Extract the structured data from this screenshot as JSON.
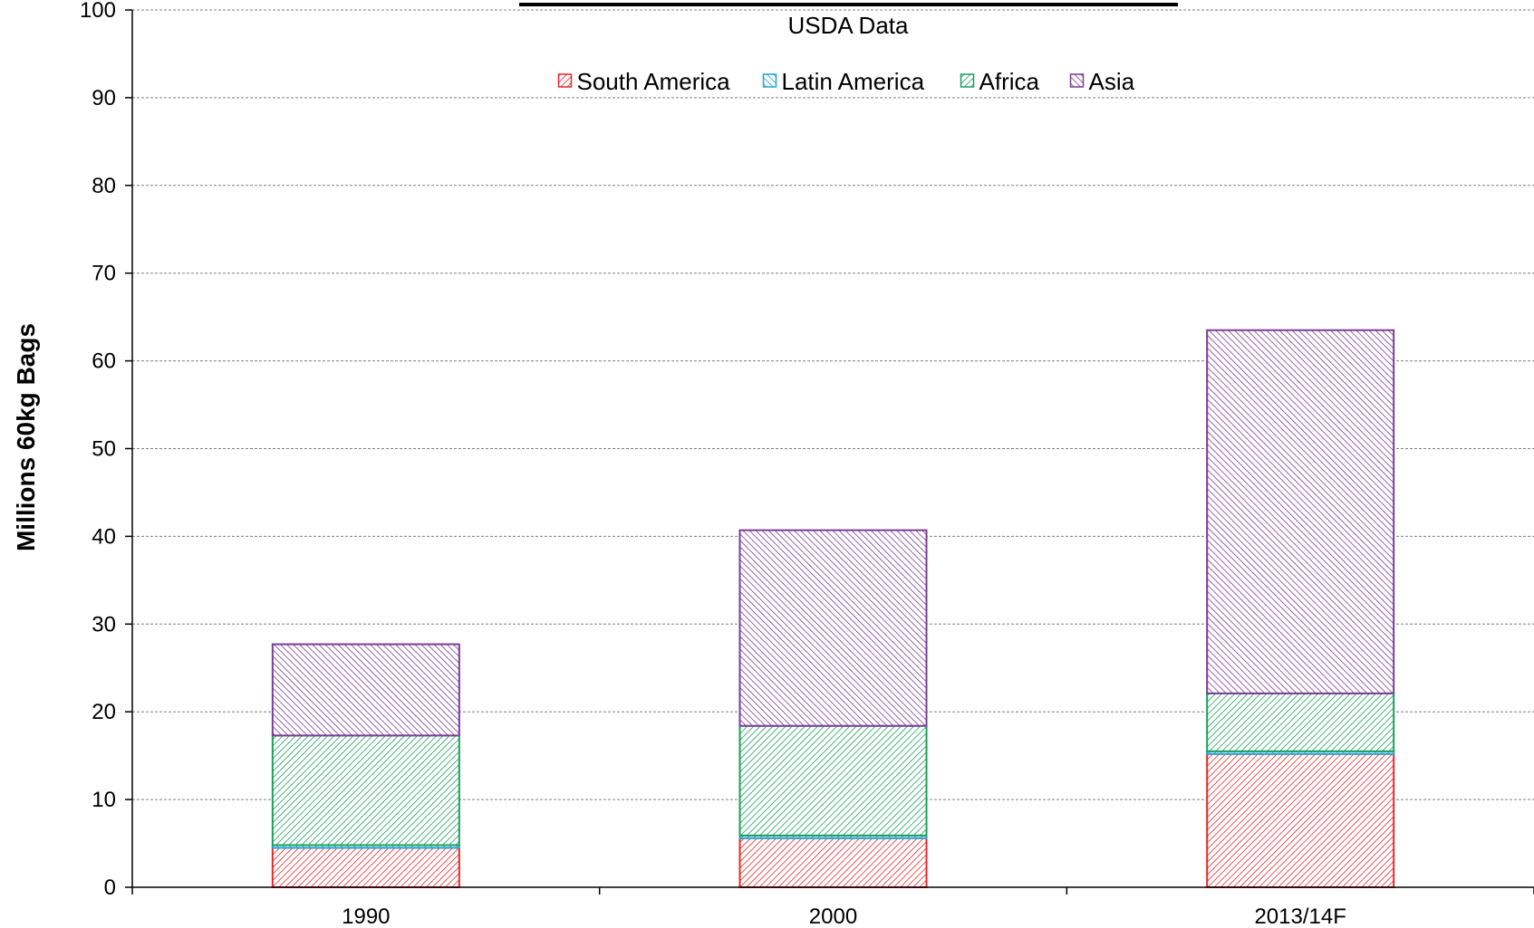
{
  "chart_data": {
    "type": "bar",
    "stacked": true,
    "title": "USDA Data",
    "ylabel": "Millions  60kg Bags",
    "xlabel": "",
    "ylim": [
      0,
      100
    ],
    "yticks": [
      0,
      10,
      20,
      30,
      40,
      50,
      60,
      70,
      80,
      90,
      100
    ],
    "grid": true,
    "legend_position": "top",
    "categories": [
      "1990",
      "2000",
      "2013/14F"
    ],
    "series": [
      {
        "name": "South America",
        "color": "#e8292a",
        "values": [
          4.5,
          5.6,
          15.2
        ]
      },
      {
        "name": "Latin America",
        "color": "#1fa6d8",
        "values": [
          0.3,
          0.3,
          0.3
        ]
      },
      {
        "name": "Africa",
        "color": "#1aa05a",
        "values": [
          12.5,
          12.5,
          6.6
        ]
      },
      {
        "name": "Asia",
        "color": "#7d3c98",
        "values": [
          10.4,
          22.3,
          41.4
        ]
      }
    ]
  }
}
